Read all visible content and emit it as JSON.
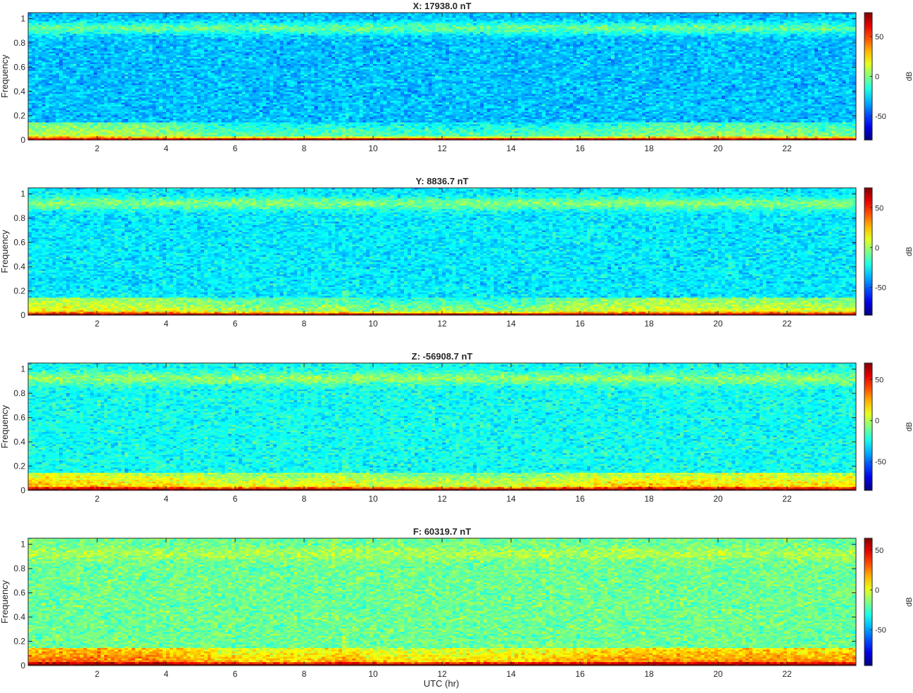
{
  "figure": {
    "xlabel": "UTC (hr)"
  },
  "chart_data": [
    {
      "type": "heatmap",
      "title": "X: 17938.0 nT",
      "ylabel": "Frequency",
      "x_ticks": [
        2,
        4,
        6,
        8,
        10,
        12,
        14,
        16,
        18,
        20,
        22
      ],
      "y_ticks": [
        0,
        0.2,
        0.4,
        0.6,
        0.8,
        1
      ],
      "xlim": [
        0,
        24
      ],
      "ylim": [
        0,
        1.05
      ],
      "colorbar": {
        "label": "dB",
        "ticks": [
          50,
          0,
          -50
        ],
        "range": [
          -80,
          80
        ]
      },
      "background_db": -30,
      "upper_band_db": -5,
      "low_band_profile": [
        [
          0,
          14
        ],
        [
          2,
          12
        ],
        [
          3.2,
          10
        ],
        [
          4.5,
          4
        ],
        [
          5.5,
          -2
        ],
        [
          8,
          -6
        ],
        [
          9.2,
          -2
        ],
        [
          10,
          -6
        ],
        [
          14,
          -6
        ],
        [
          17,
          -2
        ],
        [
          18.5,
          6
        ],
        [
          21,
          6
        ],
        [
          22,
          4
        ],
        [
          24,
          0
        ]
      ]
    },
    {
      "type": "heatmap",
      "title": "Y: 8836.7 nT",
      "ylabel": "Frequency",
      "x_ticks": [
        2,
        4,
        6,
        8,
        10,
        12,
        14,
        16,
        18,
        20,
        22
      ],
      "y_ticks": [
        0,
        0.2,
        0.4,
        0.6,
        0.8,
        1
      ],
      "xlim": [
        0,
        24
      ],
      "ylim": [
        0,
        1.05
      ],
      "colorbar": {
        "label": "dB",
        "ticks": [
          50,
          0,
          -50
        ],
        "range": [
          -85,
          75
        ]
      },
      "background_db": -28,
      "upper_band_db": -5,
      "low_band_profile": [
        [
          0,
          16
        ],
        [
          2,
          14
        ],
        [
          3.2,
          12
        ],
        [
          4.5,
          10
        ],
        [
          5.5,
          2
        ],
        [
          8,
          0
        ],
        [
          9.2,
          4
        ],
        [
          10,
          -4
        ],
        [
          12,
          -2
        ],
        [
          14,
          -4
        ],
        [
          15.5,
          6
        ],
        [
          18,
          12
        ],
        [
          20,
          10
        ],
        [
          22,
          10
        ],
        [
          24,
          8
        ]
      ]
    },
    {
      "type": "heatmap",
      "title": "Z: -56908.7 nT",
      "ylabel": "Frequency",
      "x_ticks": [
        2,
        4,
        6,
        8,
        10,
        12,
        14,
        16,
        18,
        20,
        22
      ],
      "y_ticks": [
        0,
        0.2,
        0.4,
        0.6,
        0.8,
        1
      ],
      "xlim": [
        0,
        24
      ],
      "ylim": [
        0,
        1.05
      ],
      "colorbar": {
        "label": "dB",
        "ticks": [
          50,
          0,
          -50
        ],
        "range": [
          -85,
          70
        ]
      },
      "background_db": -25,
      "upper_band_db": -5,
      "low_band_profile": [
        [
          0,
          22
        ],
        [
          2,
          20
        ],
        [
          3.2,
          18
        ],
        [
          4.5,
          16
        ],
        [
          5.5,
          12
        ],
        [
          8,
          10
        ],
        [
          9.2,
          16
        ],
        [
          10,
          8
        ],
        [
          12,
          6
        ],
        [
          14,
          6
        ],
        [
          15.5,
          12
        ],
        [
          18,
          20
        ],
        [
          20,
          18
        ],
        [
          22,
          18
        ],
        [
          24,
          16
        ]
      ]
    },
    {
      "type": "heatmap",
      "title": "F: 60319.7 nT",
      "ylabel": "Frequency",
      "x_ticks": [
        2,
        4,
        6,
        8,
        10,
        12,
        14,
        16,
        18,
        20,
        22
      ],
      "y_ticks": [
        0,
        0.2,
        0.4,
        0.6,
        0.8,
        1
      ],
      "xlim": [
        0,
        24
      ],
      "ylim": [
        0,
        1.05
      ],
      "colorbar": {
        "label": "dB",
        "ticks": [
          50,
          0,
          -50
        ],
        "range": [
          -95,
          65
        ]
      },
      "background_db": -18,
      "upper_band_db": -8,
      "low_band_profile": [
        [
          0,
          30
        ],
        [
          2,
          30
        ],
        [
          3.2,
          28
        ],
        [
          4.5,
          24
        ],
        [
          5.5,
          16
        ],
        [
          8,
          14
        ],
        [
          9.2,
          22
        ],
        [
          10,
          12
        ],
        [
          12,
          12
        ],
        [
          14,
          14
        ],
        [
          15.5,
          18
        ],
        [
          18,
          26
        ],
        [
          20,
          24
        ],
        [
          22,
          24
        ],
        [
          24,
          22
        ]
      ]
    }
  ]
}
